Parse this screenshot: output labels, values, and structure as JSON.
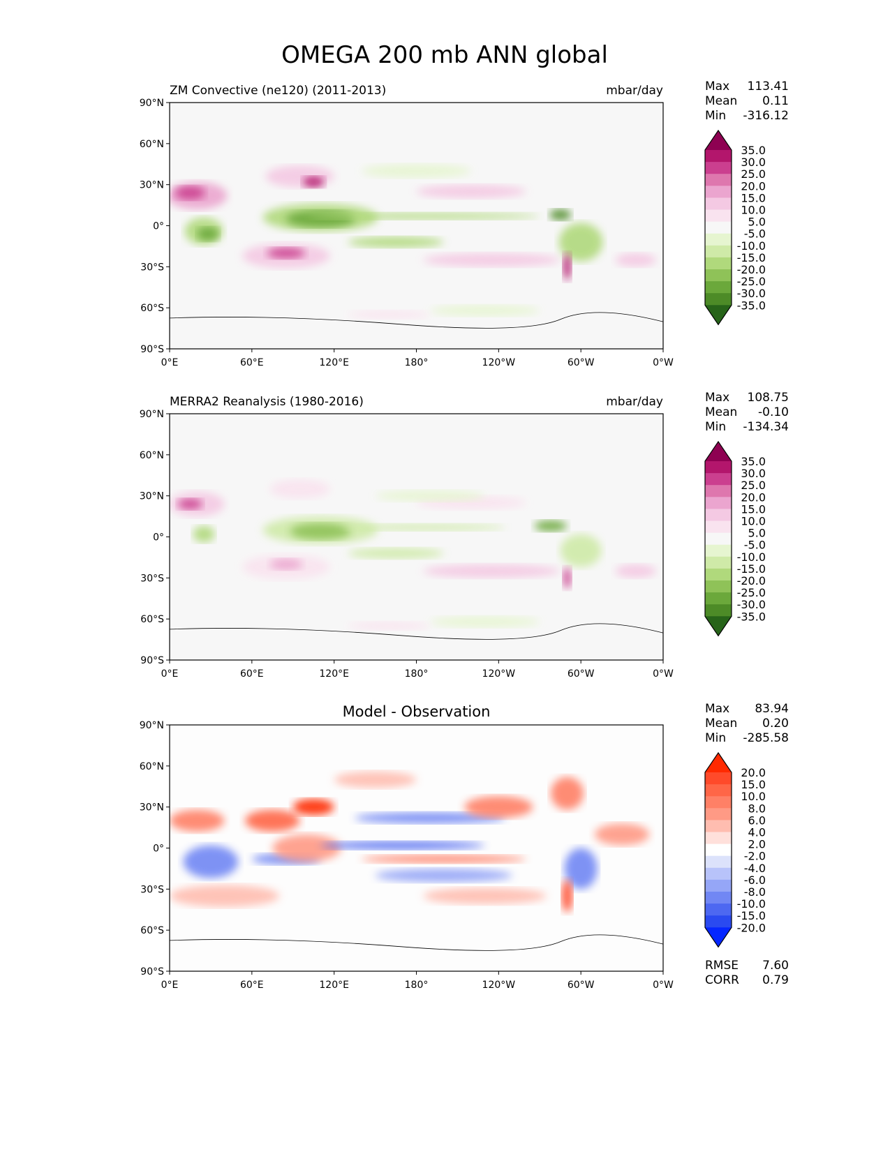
{
  "figure_title": "OMEGA 200 mb ANN global",
  "chart_data": [
    {
      "type": "heatmap",
      "title": "ZM Convective (ne120) (2011-2013)",
      "units": "mbar/day",
      "stats": {
        "max_label": "Max",
        "max": "113.41",
        "mean_label": "Mean",
        "mean": "0.11",
        "min_label": "Min",
        "min": "-316.12"
      },
      "xticks": [
        "0°E",
        "60°E",
        "120°E",
        "180°",
        "120°W",
        "60°W",
        "0°W"
      ],
      "yticks": [
        "90°N",
        "60°N",
        "30°N",
        "0°",
        "30°S",
        "60°S",
        "90°S"
      ],
      "xlim": [
        0,
        360
      ],
      "ylim": [
        -90,
        90
      ],
      "colorbar": {
        "levels": [
          "35.0",
          "30.0",
          "25.0",
          "20.0",
          "15.0",
          "10.0",
          "5.0",
          "-5.0",
          "-10.0",
          "-15.0",
          "-20.0",
          "-25.0",
          "-30.0",
          "-35.0"
        ],
        "colors": [
          "#8e0152",
          "#b3166c",
          "#cb3f8f",
          "#de77ae",
          "#eba5cf",
          "#f4c9e3",
          "#f9e3ef",
          "#f7f7f7",
          "#e6f5d0",
          "#cfeaa8",
          "#b0d97c",
          "#8fc258",
          "#6ba83b",
          "#4d8b27",
          "#276419"
        ]
      }
    },
    {
      "type": "heatmap",
      "title": "MERRA2 Reanalysis (1980-2016)",
      "units": "mbar/day",
      "stats": {
        "max_label": "Max",
        "max": "108.75",
        "mean_label": "Mean",
        "mean": "-0.10",
        "min_label": "Min",
        "min": "-134.34"
      },
      "xticks": [
        "0°E",
        "60°E",
        "120°E",
        "180°",
        "120°W",
        "60°W",
        "0°W"
      ],
      "yticks": [
        "90°N",
        "60°N",
        "30°N",
        "0°",
        "30°S",
        "60°S",
        "90°S"
      ],
      "xlim": [
        0,
        360
      ],
      "ylim": [
        -90,
        90
      ],
      "colorbar": {
        "levels": [
          "35.0",
          "30.0",
          "25.0",
          "20.0",
          "15.0",
          "10.0",
          "5.0",
          "-5.0",
          "-10.0",
          "-15.0",
          "-20.0",
          "-25.0",
          "-30.0",
          "-35.0"
        ],
        "colors": [
          "#8e0152",
          "#b3166c",
          "#cb3f8f",
          "#de77ae",
          "#eba5cf",
          "#f4c9e3",
          "#f9e3ef",
          "#f7f7f7",
          "#e6f5d0",
          "#cfeaa8",
          "#b0d97c",
          "#8fc258",
          "#6ba83b",
          "#4d8b27",
          "#276419"
        ]
      }
    },
    {
      "type": "heatmap",
      "title": "Model - Observation",
      "units": "",
      "stats": {
        "max_label": "Max",
        "max": "83.94",
        "mean_label": "Mean",
        "mean": "0.20",
        "min_label": "Min",
        "min": "-285.58"
      },
      "extra_stats": {
        "rmse_label": "RMSE",
        "rmse": "7.60",
        "corr_label": "CORR",
        "corr": "0.79"
      },
      "xticks": [
        "0°E",
        "60°E",
        "120°E",
        "180°",
        "120°W",
        "60°W",
        "0°W"
      ],
      "yticks": [
        "90°N",
        "60°N",
        "30°N",
        "0°",
        "30°S",
        "60°S",
        "90°S"
      ],
      "xlim": [
        0,
        360
      ],
      "ylim": [
        -90,
        90
      ],
      "colorbar": {
        "levels": [
          "20.0",
          "15.0",
          "10.0",
          "8.0",
          "6.0",
          "4.0",
          "2.0",
          "-2.0",
          "-4.0",
          "-6.0",
          "-8.0",
          "-10.0",
          "-15.0",
          "-20.0"
        ],
        "colors": [
          "#ff2a00",
          "#ff4a2a",
          "#ff6647",
          "#ff8066",
          "#ff9a85",
          "#ffbdb0",
          "#ffe0db",
          "#ffffff",
          "#dce2fb",
          "#b8c3fa",
          "#95a6f7",
          "#7187f4",
          "#4d68f1",
          "#2a4af0",
          "#0526ff"
        ]
      }
    }
  ]
}
